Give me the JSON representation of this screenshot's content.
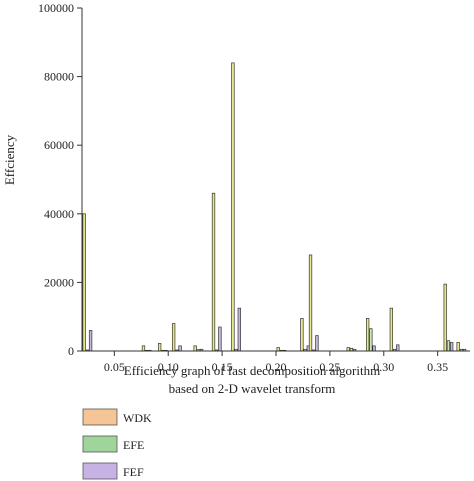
{
  "chart_data": {
    "type": "bar",
    "ylabel": "Effciency",
    "xlabel_lines": [
      "Efficiency graph of fast decomposition algorithm",
      "based on 2-D wavelet transform"
    ],
    "xlim": [
      0.02,
      0.38
    ],
    "ylim": [
      0,
      100000
    ],
    "x_ticks": [
      {
        "value": 0.05,
        "label": "0.05"
      },
      {
        "value": 0.1,
        "label": "0.10"
      },
      {
        "value": 0.15,
        "label": "0.15"
      },
      {
        "value": 0.2,
        "label": "0.20"
      },
      {
        "value": 0.25,
        "label": "0.25"
      },
      {
        "value": 0.3,
        "label": "0.30"
      },
      {
        "value": 0.35,
        "label": "0.35"
      }
    ],
    "y_ticks": [
      {
        "value": 0,
        "label": "0"
      },
      {
        "value": 20000,
        "label": "20000"
      },
      {
        "value": 40000,
        "label": "40000"
      },
      {
        "value": 60000,
        "label": "60000"
      },
      {
        "value": 80000,
        "label": "80000"
      },
      {
        "value": 100000,
        "label": "100000"
      }
    ],
    "x": [
      0.025,
      0.08,
      0.095,
      0.108,
      0.128,
      0.145,
      0.163,
      0.205,
      0.227,
      0.235,
      0.27,
      0.288,
      0.31,
      0.36,
      0.372
    ],
    "series": [
      {
        "name": "WDK",
        "color": "#e8e88a",
        "values": [
          40000,
          1500,
          2200,
          8000,
          1500,
          46000,
          84000,
          1000,
          9500,
          28000,
          1000,
          9500,
          12500,
          19500,
          2500
        ]
      },
      {
        "name": "EFE",
        "color": "#c8e6b8",
        "values": [
          300,
          200,
          200,
          300,
          400,
          300,
          500,
          200,
          500,
          300,
          800,
          6500,
          500,
          3000,
          500
        ]
      },
      {
        "name": "FEF",
        "color": "#c9b6e0",
        "values": [
          6000,
          200,
          200,
          1500,
          500,
          7000,
          12500,
          200,
          1500,
          4500,
          500,
          1500,
          1800,
          2500,
          500
        ]
      }
    ],
    "legend": {
      "placement": "bottom-left",
      "entries": [
        {
          "label": "WDK",
          "color": "#f5c596"
        },
        {
          "label": "EFE",
          "color": "#9fd49a"
        },
        {
          "label": "FEF",
          "color": "#c7b3e3"
        }
      ]
    }
  }
}
